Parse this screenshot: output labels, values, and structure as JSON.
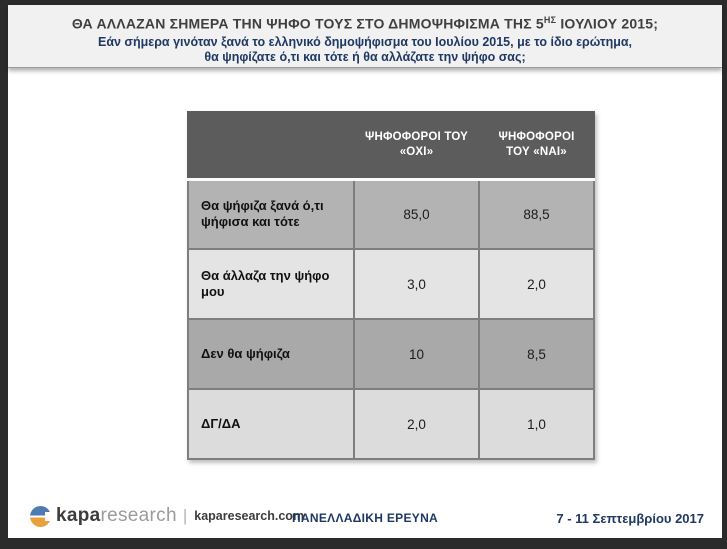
{
  "header": {
    "title_prefix": "ΘΑ ΑΛΛΑΖΑΝ ΣΗΜΕΡΑ ΤΗΝ ΨΗΦΟ ΤΟΥΣ ΣΤΟ ΔΗΜΟΨΗΦΙΣΜΑ ΤΗΣ 5",
    "title_superscript": "ΗΣ",
    "title_suffix": " ΙΟΥΛΙΟΥ 2015;",
    "subtitle_line1": "Εάν σήμερα γινόταν ξανά το ελληνικό δημοψήφισμα του Ιουλίου 2015, με το ίδιο ερώτημα,",
    "subtitle_line2": "θα ψηφίζατε ό,τι και τότε ή θα αλλάζατε την ψήφο σας;"
  },
  "table": {
    "columns": {
      "oxi": "ΨΗΦΟΦΟΡΟΙ ΤΟΥ «ΟΧΙ»",
      "nai": "ΨΗΦΟΦΟΡΟΙ ΤΟΥ «ΝΑΙ»"
    },
    "rows": [
      {
        "label": "Θα ψήφιζα ξανά ό,τι ψήφισα και τότε",
        "oxi": "85,0",
        "nai": "88,5"
      },
      {
        "label": "Θα άλλαζα την ψήφο μου",
        "oxi": "3,0",
        "nai": "2,0"
      },
      {
        "label": "Δεν θα ψήφιζα",
        "oxi": "10",
        "nai": "8,5"
      },
      {
        "label": "ΔΓ/ΔΑ",
        "oxi": "2,0",
        "nai": "1,0"
      }
    ]
  },
  "chart_data": {
    "type": "table",
    "title": "ΘΑ ΑΛΛΑΖΑΝ ΣΗΜΕΡΑ ΤΗΝ ΨΗΦΟ ΤΟΥΣ ΣΤΟ ΔΗΜΟΨΗΦΙΣΜΑ ΤΗΣ 5ΗΣ ΙΟΥΛΙΟΥ 2015;",
    "subtitle": "Εάν σήμερα γινόταν ξανά το ελληνικό δημοψήφισμα του Ιουλίου 2015, με το ίδιο ερώτημα, θα ψηφίζατε ό,τι και τότε ή θα αλλάζατε την ψήφο σας;",
    "categories": [
      "Θα ψήφιζα ξανά ό,τι ψήφισα και τότε",
      "Θα άλλαζα την ψήφο μου",
      "Δεν θα ψήφιζα",
      "ΔΓ/ΔΑ"
    ],
    "series": [
      {
        "name": "ΨΗΦΟΦΟΡΟΙ ΤΟΥ «ΟΧΙ»",
        "values": [
          85.0,
          3.0,
          10,
          2.0
        ]
      },
      {
        "name": "ΨΗΦΟΦΟΡΟΙ ΤΟΥ «ΝΑΙ»",
        "values": [
          88.5,
          2.0,
          8.5,
          1.0
        ]
      }
    ]
  },
  "footer": {
    "logo_kapa": "kapa",
    "logo_research": "research",
    "separator": "|",
    "website": "kaparesearch.com",
    "survey_type": "ΠΑΝΕΛΛΑΔΙΚΗ ΕΡΕΥΝΑ",
    "date_range": "7 - 11 Σεπτεμβρίου 2017"
  },
  "colors": {
    "frame": "#2b2b2b",
    "header_box_bg": "#f1f1f1",
    "title_text": "#3f3f3f",
    "navy_text": "#1f3864",
    "table_header_bg": "#5c5c5c",
    "row_dark": "#b3b3b3",
    "row_light": "#e4e4e4",
    "row_darker": "#a9a9a9",
    "row_lighter": "#dcdcdc",
    "cell_border": "#7e7e7e",
    "logo_blue": "#4e7ab2",
    "logo_orange": "#e9a23b"
  }
}
